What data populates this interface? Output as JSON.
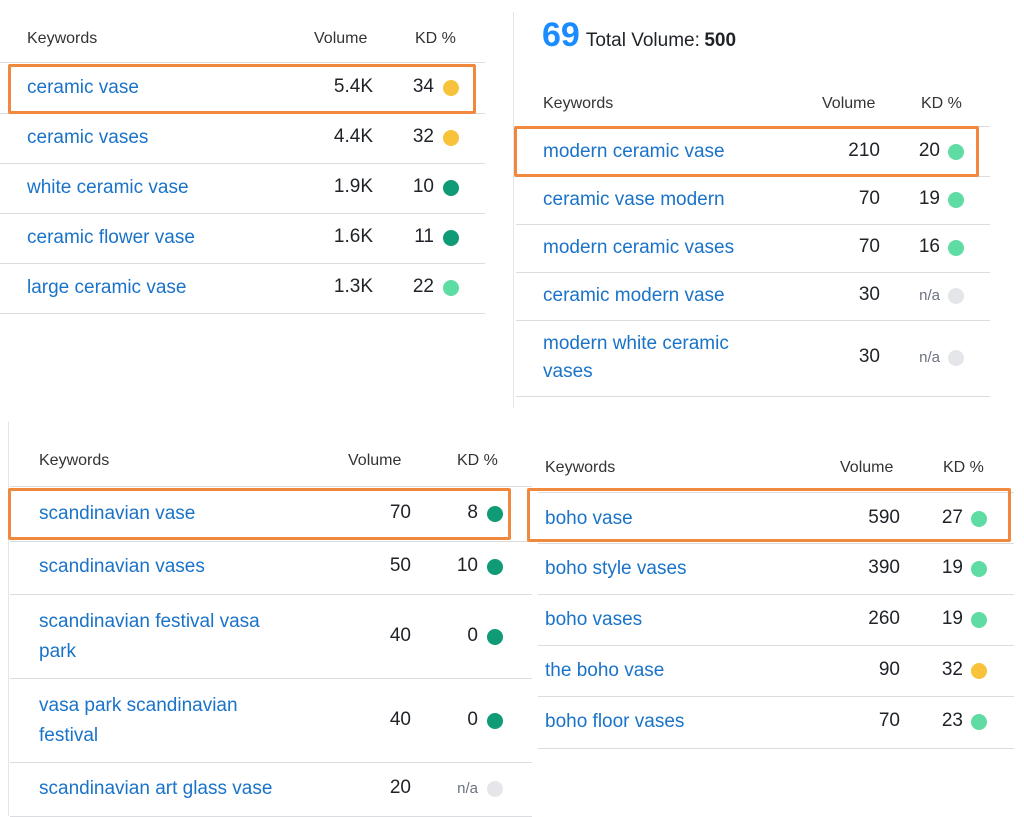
{
  "colors": {
    "link": "#1a73c8",
    "highlight": "#f0883e",
    "dot_yellow": "#f8c23a",
    "dot_light_green": "#5fdca4",
    "dot_dark_green": "#0f9b75",
    "dot_na": "#e4e6ea"
  },
  "panel_a": {
    "headers": {
      "keywords": "Keywords",
      "volume": "Volume",
      "kd": "KD %"
    },
    "rows": [
      {
        "keyword": "ceramic vase",
        "volume": "5.4K",
        "kd": "34",
        "dot": "yellow"
      },
      {
        "keyword": "ceramic vases",
        "volume": "4.4K",
        "kd": "32",
        "dot": "yellow"
      },
      {
        "keyword": "white ceramic vase",
        "volume": "1.9K",
        "kd": "10",
        "dot": "dark-green"
      },
      {
        "keyword": "ceramic flower vase",
        "volume": "1.6K",
        "kd": "11",
        "dot": "dark-green"
      },
      {
        "keyword": "large ceramic vase",
        "volume": "1.3K",
        "kd": "22",
        "dot": "light-green"
      }
    ]
  },
  "panel_b": {
    "total": {
      "count": "69",
      "label": "Total Volume:",
      "value": "500"
    },
    "headers": {
      "keywords": "Keywords",
      "volume": "Volume",
      "kd": "KD %"
    },
    "rows": [
      {
        "keyword": "modern ceramic vase",
        "volume": "210",
        "kd": "20",
        "dot": "light-green"
      },
      {
        "keyword": "ceramic vase modern",
        "volume": "70",
        "kd": "19",
        "dot": "light-green"
      },
      {
        "keyword": "modern ceramic vases",
        "volume": "70",
        "kd": "16",
        "dot": "light-green"
      },
      {
        "keyword": "ceramic modern vase",
        "volume": "30",
        "kd": "n/a",
        "dot": "na"
      },
      {
        "keyword_line1": "modern white ceramic",
        "keyword_line2": "vases",
        "volume": "30",
        "kd": "n/a",
        "dot": "na"
      }
    ]
  },
  "panel_c": {
    "headers": {
      "keywords": "Keywords",
      "volume": "Volume",
      "kd": "KD %"
    },
    "rows": [
      {
        "keyword": "scandinavian vase",
        "volume": "70",
        "kd": "8",
        "dot": "dark-green"
      },
      {
        "keyword": "scandinavian vases",
        "volume": "50",
        "kd": "10",
        "dot": "dark-green"
      },
      {
        "keyword_line1": "scandinavian festival vasa",
        "keyword_line2": "park",
        "volume": "40",
        "kd": "0",
        "dot": "dark-green"
      },
      {
        "keyword_line1": "vasa park scandinavian",
        "keyword_line2": "festival",
        "volume": "40",
        "kd": "0",
        "dot": "dark-green"
      },
      {
        "keyword": "scandinavian art glass vase",
        "volume": "20",
        "kd": "n/a",
        "dot": "na"
      }
    ]
  },
  "panel_d": {
    "headers": {
      "keywords": "Keywords",
      "volume": "Volume",
      "kd": "KD %"
    },
    "rows": [
      {
        "keyword": "boho vase",
        "volume": "590",
        "kd": "27",
        "dot": "light-green"
      },
      {
        "keyword": "boho style vases",
        "volume": "390",
        "kd": "19",
        "dot": "light-green"
      },
      {
        "keyword": "boho vases",
        "volume": "260",
        "kd": "19",
        "dot": "light-green"
      },
      {
        "keyword": "the boho vase",
        "volume": "90",
        "kd": "32",
        "dot": "yellow"
      },
      {
        "keyword": "boho floor vases",
        "volume": "70",
        "kd": "23",
        "dot": "light-green"
      }
    ]
  }
}
